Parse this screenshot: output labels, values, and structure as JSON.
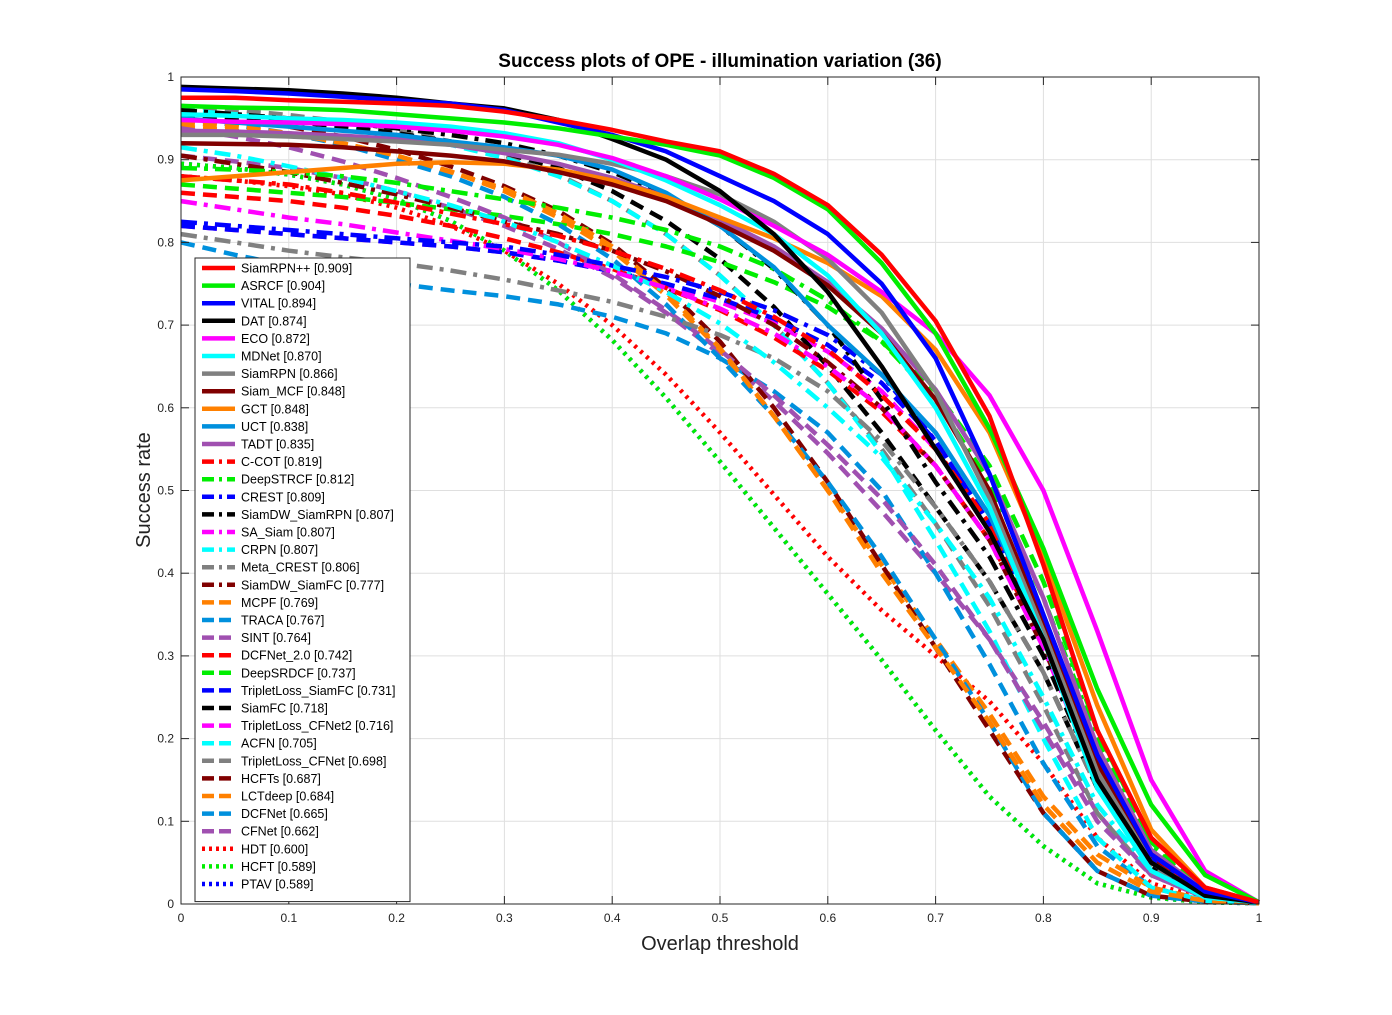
{
  "chart_data": {
    "type": "line",
    "title": "Success plots of OPE - illumination variation (36)",
    "xlabel": "Overlap threshold",
    "ylabel": "Success rate",
    "xlim": [
      0,
      1
    ],
    "ylim": [
      0,
      1
    ],
    "x_ticks": [
      "0",
      "0.1",
      "0.2",
      "0.3",
      "0.4",
      "0.5",
      "0.6",
      "0.7",
      "0.8",
      "0.9",
      "1"
    ],
    "y_ticks": [
      "0",
      "0.1",
      "0.2",
      "0.3",
      "0.4",
      "0.5",
      "0.6",
      "0.7",
      "0.8",
      "0.9",
      "1"
    ],
    "grid": true,
    "legend_position": "bottom-left",
    "x": [
      0,
      0.05,
      0.1,
      0.15,
      0.2,
      0.25,
      0.3,
      0.35,
      0.4,
      0.45,
      0.5,
      0.55,
      0.6,
      0.65,
      0.7,
      0.75,
      0.8,
      0.85,
      0.9,
      0.95,
      1
    ],
    "series": [
      {
        "name": "SiamRPN++ [0.909]",
        "color": "#ff0000",
        "style": "solid",
        "values": [
          0.975,
          0.975,
          0.972,
          0.97,
          0.968,
          0.965,
          0.958,
          0.948,
          0.936,
          0.922,
          0.91,
          0.883,
          0.845,
          0.785,
          0.705,
          0.59,
          0.41,
          0.21,
          0.08,
          0.02,
          0.002
        ]
      },
      {
        "name": "ASRCF [0.904]",
        "color": "#00ee00",
        "style": "solid",
        "values": [
          0.965,
          0.963,
          0.962,
          0.96,
          0.955,
          0.95,
          0.945,
          0.938,
          0.928,
          0.918,
          0.905,
          0.878,
          0.84,
          0.775,
          0.69,
          0.575,
          0.43,
          0.26,
          0.12,
          0.035,
          0.002
        ]
      },
      {
        "name": "VITAL [0.894]",
        "color": "#0000ff",
        "style": "solid",
        "values": [
          0.985,
          0.983,
          0.98,
          0.976,
          0.972,
          0.968,
          0.96,
          0.945,
          0.93,
          0.91,
          0.88,
          0.85,
          0.81,
          0.75,
          0.66,
          0.52,
          0.35,
          0.18,
          0.06,
          0.015,
          0.002
        ]
      },
      {
        "name": "DAT [0.874]",
        "color": "#000000",
        "style": "solid",
        "values": [
          0.988,
          0.986,
          0.984,
          0.98,
          0.975,
          0.968,
          0.962,
          0.948,
          0.925,
          0.9,
          0.862,
          0.81,
          0.74,
          0.65,
          0.55,
          0.45,
          0.32,
          0.15,
          0.05,
          0.01,
          0.002
        ]
      },
      {
        "name": "ECO [0.872]",
        "color": "#ff00ff",
        "style": "solid",
        "values": [
          0.948,
          0.946,
          0.945,
          0.943,
          0.94,
          0.935,
          0.928,
          0.918,
          0.902,
          0.88,
          0.852,
          0.82,
          0.785,
          0.74,
          0.69,
          0.615,
          0.5,
          0.33,
          0.15,
          0.04,
          0.002
        ]
      },
      {
        "name": "MDNet [0.870]",
        "color": "#00ffff",
        "style": "solid",
        "values": [
          0.955,
          0.953,
          0.95,
          0.948,
          0.945,
          0.94,
          0.932,
          0.92,
          0.9,
          0.875,
          0.845,
          0.81,
          0.76,
          0.69,
          0.6,
          0.48,
          0.32,
          0.14,
          0.04,
          0.008,
          0.002
        ]
      },
      {
        "name": "SiamRPN [0.866]",
        "color": "#808080",
        "style": "solid",
        "values": [
          0.93,
          0.93,
          0.928,
          0.925,
          0.922,
          0.918,
          0.912,
          0.906,
          0.895,
          0.88,
          0.858,
          0.825,
          0.78,
          0.715,
          0.62,
          0.49,
          0.33,
          0.16,
          0.05,
          0.01,
          0.002
        ]
      },
      {
        "name": "Siam_MCF [0.848]",
        "color": "#800000",
        "style": "solid",
        "values": [
          0.92,
          0.919,
          0.918,
          0.915,
          0.91,
          0.905,
          0.898,
          0.885,
          0.87,
          0.85,
          0.822,
          0.79,
          0.748,
          0.69,
          0.61,
          0.5,
          0.34,
          0.17,
          0.06,
          0.015,
          0.002
        ]
      },
      {
        "name": "GCT [0.848]",
        "color": "#ff8000",
        "style": "solid",
        "values": [
          0.875,
          0.88,
          0.885,
          0.89,
          0.895,
          0.897,
          0.895,
          0.888,
          0.875,
          0.855,
          0.83,
          0.805,
          0.775,
          0.735,
          0.67,
          0.57,
          0.42,
          0.24,
          0.09,
          0.02,
          0.002
        ]
      },
      {
        "name": "UCT [0.838]",
        "color": "#0090dd",
        "style": "solid",
        "values": [
          0.95,
          0.945,
          0.94,
          0.935,
          0.93,
          0.922,
          0.915,
          0.905,
          0.888,
          0.86,
          0.82,
          0.77,
          0.7,
          0.64,
          0.57,
          0.47,
          0.33,
          0.16,
          0.05,
          0.01,
          0.002
        ]
      },
      {
        "name": "TADT [0.835]",
        "color": "#a050b0",
        "style": "solid",
        "values": [
          0.935,
          0.934,
          0.932,
          0.929,
          0.925,
          0.918,
          0.908,
          0.895,
          0.878,
          0.855,
          0.828,
          0.795,
          0.752,
          0.696,
          0.622,
          0.52,
          0.37,
          0.19,
          0.065,
          0.015,
          0.002
        ]
      },
      {
        "name": "C-COT [0.819]",
        "color": "#ff0000",
        "style": "dashdot",
        "values": [
          0.88,
          0.875,
          0.87,
          0.86,
          0.848,
          0.835,
          0.822,
          0.808,
          0.79,
          0.768,
          0.742,
          0.71,
          0.67,
          0.615,
          0.55,
          0.46,
          0.33,
          0.17,
          0.06,
          0.012,
          0.002
        ]
      },
      {
        "name": "DeepSTRCF [0.812]",
        "color": "#00ee00",
        "style": "dashdot",
        "values": [
          0.89,
          0.888,
          0.885,
          0.88,
          0.872,
          0.862,
          0.852,
          0.842,
          0.83,
          0.815,
          0.795,
          0.768,
          0.73,
          0.68,
          0.61,
          0.51,
          0.37,
          0.2,
          0.07,
          0.015,
          0.002
        ]
      },
      {
        "name": "CREST [0.809]",
        "color": "#0000ff",
        "style": "dashdot",
        "values": [
          0.825,
          0.82,
          0.815,
          0.81,
          0.805,
          0.8,
          0.795,
          0.785,
          0.772,
          0.758,
          0.74,
          0.718,
          0.688,
          0.64,
          0.56,
          0.46,
          0.32,
          0.16,
          0.05,
          0.01,
          0.002
        ]
      },
      {
        "name": "SiamDW_SiamRPN [0.807]",
        "color": "#000000",
        "style": "dashdot",
        "values": [
          0.96,
          0.955,
          0.95,
          0.945,
          0.938,
          0.93,
          0.92,
          0.905,
          0.885,
          0.858,
          0.82,
          0.768,
          0.7,
          0.61,
          0.51,
          0.42,
          0.3,
          0.15,
          0.05,
          0.01,
          0.002
        ]
      },
      {
        "name": "SA_Siam [0.807]",
        "color": "#ff00ff",
        "style": "dashdot",
        "values": [
          0.85,
          0.84,
          0.83,
          0.822,
          0.812,
          0.802,
          0.792,
          0.78,
          0.765,
          0.745,
          0.72,
          0.69,
          0.65,
          0.6,
          0.53,
          0.44,
          0.31,
          0.15,
          0.05,
          0.01,
          0.002
        ]
      },
      {
        "name": "CRPN [0.807]",
        "color": "#00ffff",
        "style": "dashdot",
        "values": [
          0.915,
          0.905,
          0.892,
          0.878,
          0.862,
          0.845,
          0.825,
          0.8,
          0.772,
          0.74,
          0.702,
          0.655,
          0.6,
          0.54,
          0.46,
          0.37,
          0.25,
          0.12,
          0.04,
          0.008,
          0.002
        ]
      },
      {
        "name": "Meta_CREST [0.806]",
        "color": "#808080",
        "style": "dashdot",
        "values": [
          0.81,
          0.8,
          0.79,
          0.782,
          0.775,
          0.766,
          0.755,
          0.742,
          0.728,
          0.71,
          0.688,
          0.66,
          0.62,
          0.56,
          0.48,
          0.39,
          0.28,
          0.14,
          0.045,
          0.01,
          0.002
        ]
      },
      {
        "name": "SiamDW_SiamFC [0.777]",
        "color": "#800000",
        "style": "dashdot",
        "values": [
          0.905,
          0.895,
          0.885,
          0.872,
          0.858,
          0.842,
          0.825,
          0.81,
          0.79,
          0.765,
          0.735,
          0.7,
          0.655,
          0.6,
          0.53,
          0.44,
          0.31,
          0.16,
          0.055,
          0.012,
          0.002
        ]
      },
      {
        "name": "MCPF [0.769]",
        "color": "#ff8000",
        "style": "dashed",
        "values": [
          0.945,
          0.94,
          0.932,
          0.92,
          0.905,
          0.885,
          0.865,
          0.835,
          0.795,
          0.74,
          0.672,
          0.59,
          0.5,
          0.4,
          0.31,
          0.22,
          0.12,
          0.05,
          0.015,
          0.004,
          0.001
        ]
      },
      {
        "name": "TRACA [0.767]",
        "color": "#0090dd",
        "style": "dashed",
        "values": [
          0.95,
          0.942,
          0.932,
          0.918,
          0.9,
          0.88,
          0.855,
          0.822,
          0.78,
          0.725,
          0.66,
          0.59,
          0.51,
          0.42,
          0.32,
          0.22,
          0.11,
          0.04,
          0.01,
          0.003,
          0.001
        ]
      },
      {
        "name": "SINT [0.764]",
        "color": "#a050b0",
        "style": "dashed",
        "values": [
          0.938,
          0.928,
          0.915,
          0.898,
          0.878,
          0.855,
          0.83,
          0.8,
          0.762,
          0.718,
          0.67,
          0.615,
          0.555,
          0.49,
          0.41,
          0.32,
          0.21,
          0.1,
          0.035,
          0.008,
          0.002
        ]
      },
      {
        "name": "DCFNet_2.0 [0.742]",
        "color": "#ff0000",
        "style": "dashed",
        "values": [
          0.86,
          0.855,
          0.85,
          0.842,
          0.832,
          0.82,
          0.805,
          0.788,
          0.768,
          0.745,
          0.718,
          0.685,
          0.645,
          0.595,
          0.53,
          0.44,
          0.32,
          0.17,
          0.06,
          0.012,
          0.002
        ]
      },
      {
        "name": "DeepSRDCF [0.737]",
        "color": "#00ee00",
        "style": "dashed",
        "values": [
          0.87,
          0.865,
          0.86,
          0.855,
          0.848,
          0.84,
          0.832,
          0.822,
          0.81,
          0.795,
          0.776,
          0.752,
          0.722,
          0.68,
          0.62,
          0.53,
          0.39,
          0.21,
          0.075,
          0.015,
          0.002
        ]
      },
      {
        "name": "TripletLoss_SiamFC [0.731]",
        "color": "#0000ff",
        "style": "dashed",
        "values": [
          0.82,
          0.815,
          0.81,
          0.805,
          0.8,
          0.795,
          0.788,
          0.778,
          0.765,
          0.75,
          0.732,
          0.708,
          0.676,
          0.63,
          0.56,
          0.46,
          0.33,
          0.17,
          0.055,
          0.012,
          0.002
        ]
      },
      {
        "name": "SiamFC [0.718]",
        "color": "#000000",
        "style": "dashed",
        "values": [
          0.955,
          0.95,
          0.946,
          0.94,
          0.932,
          0.922,
          0.908,
          0.89,
          0.862,
          0.826,
          0.78,
          0.722,
          0.65,
          0.57,
          0.48,
          0.39,
          0.28,
          0.14,
          0.045,
          0.01,
          0.002
        ]
      },
      {
        "name": "TripletLoss_CFNet2 [0.716]",
        "color": "#ff00ff",
        "style": "dashed",
        "values": [
          0.82,
          0.815,
          0.81,
          0.805,
          0.8,
          0.795,
          0.788,
          0.778,
          0.765,
          0.748,
          0.728,
          0.702,
          0.668,
          0.62,
          0.55,
          0.45,
          0.32,
          0.16,
          0.05,
          0.01,
          0.002
        ]
      },
      {
        "name": "ACFN [0.705]",
        "color": "#00ffff",
        "style": "dashed",
        "values": [
          0.96,
          0.955,
          0.948,
          0.94,
          0.93,
          0.918,
          0.902,
          0.88,
          0.85,
          0.81,
          0.76,
          0.7,
          0.63,
          0.545,
          0.44,
          0.33,
          0.2,
          0.08,
          0.02,
          0.004,
          0.001
        ]
      },
      {
        "name": "TripletLoss_CFNet [0.698]",
        "color": "#808080",
        "style": "dashed",
        "values": [
          0.965,
          0.96,
          0.954,
          0.946,
          0.936,
          0.922,
          0.905,
          0.882,
          0.85,
          0.81,
          0.76,
          0.7,
          0.63,
          0.55,
          0.46,
          0.36,
          0.24,
          0.11,
          0.035,
          0.008,
          0.002
        ]
      },
      {
        "name": "HCFTs [0.687]",
        "color": "#800000",
        "style": "dashed",
        "values": [
          0.955,
          0.948,
          0.94,
          0.928,
          0.912,
          0.892,
          0.868,
          0.838,
          0.798,
          0.745,
          0.68,
          0.6,
          0.51,
          0.41,
          0.31,
          0.21,
          0.11,
          0.04,
          0.01,
          0.003,
          0.001
        ]
      },
      {
        "name": "LCTdeep [0.684]",
        "color": "#ff8000",
        "style": "dashed",
        "values": [
          0.94,
          0.935,
          0.93,
          0.92,
          0.905,
          0.886,
          0.862,
          0.83,
          0.79,
          0.736,
          0.67,
          0.59,
          0.5,
          0.41,
          0.32,
          0.23,
          0.13,
          0.06,
          0.02,
          0.005,
          0.001
        ]
      },
      {
        "name": "DCFNet [0.665]",
        "color": "#0090dd",
        "style": "dashed",
        "values": [
          0.8,
          0.785,
          0.772,
          0.76,
          0.75,
          0.742,
          0.735,
          0.725,
          0.71,
          0.69,
          0.66,
          0.62,
          0.57,
          0.5,
          0.4,
          0.29,
          0.17,
          0.07,
          0.02,
          0.004,
          0.001
        ]
      },
      {
        "name": "CFNet [0.662]",
        "color": "#a050b0",
        "style": "dashed",
        "values": [
          0.905,
          0.898,
          0.89,
          0.878,
          0.862,
          0.842,
          0.82,
          0.792,
          0.758,
          0.715,
          0.665,
          0.608,
          0.545,
          0.475,
          0.4,
          0.32,
          0.22,
          0.11,
          0.035,
          0.008,
          0.002
        ]
      },
      {
        "name": "HDT [0.600]",
        "color": "#ff0000",
        "style": "dotted",
        "values": [
          0.88,
          0.875,
          0.868,
          0.858,
          0.842,
          0.82,
          0.79,
          0.75,
          0.7,
          0.64,
          0.57,
          0.495,
          0.42,
          0.355,
          0.3,
          0.245,
          0.17,
          0.08,
          0.025,
          0.006,
          0.001
        ]
      },
      {
        "name": "HCFT [0.589]",
        "color": "#00ee00",
        "style": "dotted",
        "values": [
          0.895,
          0.89,
          0.882,
          0.87,
          0.852,
          0.826,
          0.79,
          0.742,
          0.682,
          0.612,
          0.535,
          0.455,
          0.375,
          0.295,
          0.21,
          0.13,
          0.07,
          0.025,
          0.008,
          0.002,
          0.001
        ]
      },
      {
        "name": "PTAV [0.589]",
        "color": "#0000ff",
        "style": "dotted",
        "values": [
          0.895,
          0.89,
          0.882,
          0.87,
          0.852,
          0.826,
          0.79,
          0.742,
          0.682,
          0.612,
          0.535,
          0.455,
          0.375,
          0.295,
          0.21,
          0.13,
          0.07,
          0.025,
          0.008,
          0.002,
          0.001
        ]
      }
    ]
  }
}
